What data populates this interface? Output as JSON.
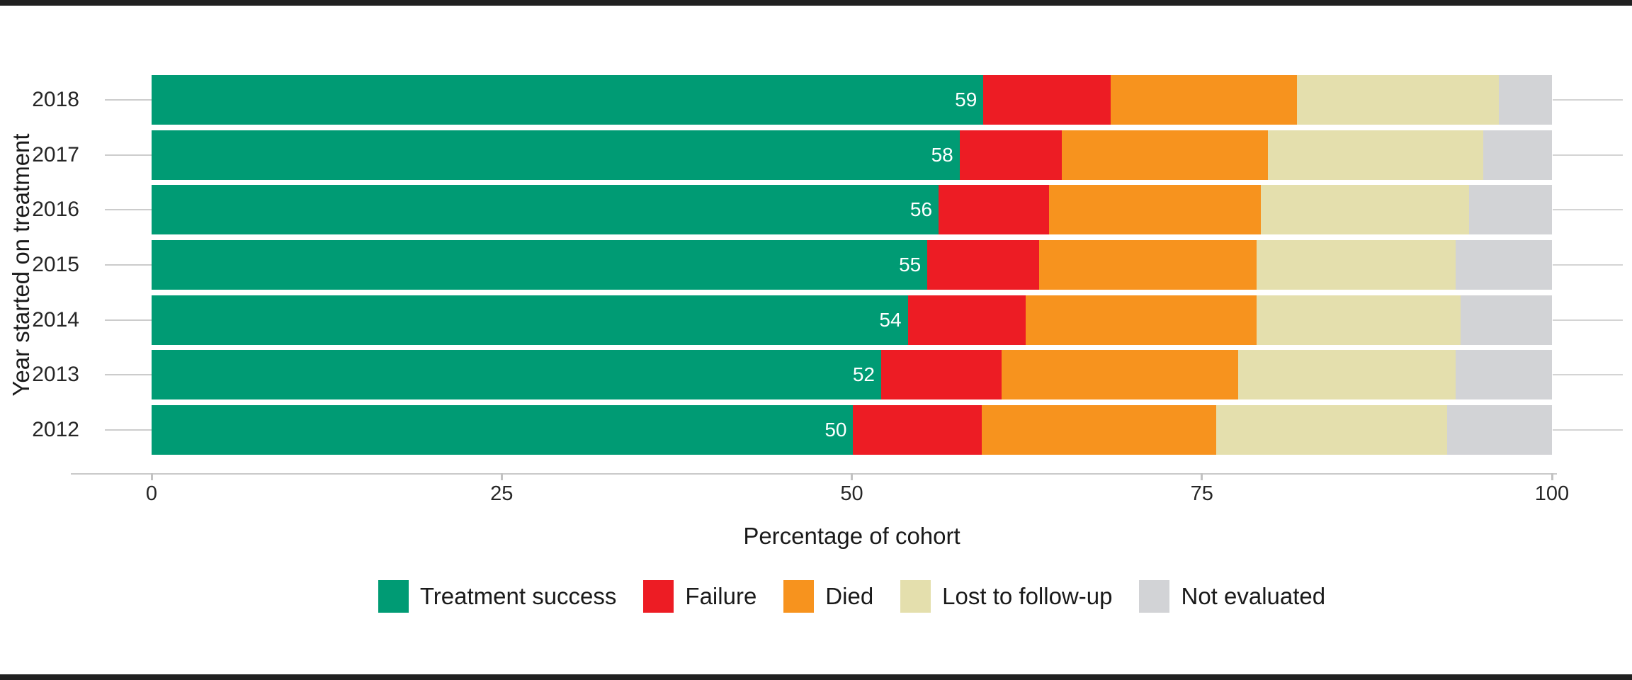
{
  "chart_data": {
    "type": "bar",
    "orientation": "horizontal",
    "stacked": true,
    "title": "",
    "xlabel": "Percentage of cohort",
    "ylabel": "Year started on treatment",
    "xlim": [
      0,
      100
    ],
    "xticks": [
      0,
      25,
      50,
      75,
      100
    ],
    "grid": "category tick lines only, no vertical gridlines",
    "legend_position": "bottom-center",
    "categories": [
      "2018",
      "2017",
      "2016",
      "2015",
      "2014",
      "2013",
      "2012"
    ],
    "series": [
      {
        "name": "Treatment success",
        "color": "#009B74",
        "values": [
          59.4,
          57.7,
          56.2,
          55.4,
          54.0,
          52.1,
          50.1
        ]
      },
      {
        "name": "Failure",
        "color": "#ED1C24",
        "values": [
          9.1,
          7.3,
          7.9,
          8.0,
          8.4,
          8.6,
          9.2
        ]
      },
      {
        "name": "Died",
        "color": "#F7931E",
        "values": [
          13.3,
          14.7,
          15.1,
          15.5,
          16.5,
          16.9,
          16.7
        ]
      },
      {
        "name": "Lost to follow-up",
        "color": "#E4DFAD",
        "values": [
          14.4,
          15.4,
          14.9,
          14.2,
          14.6,
          15.5,
          16.5
        ]
      },
      {
        "name": "Not evaluated",
        "color": "#D2D3D6",
        "values": [
          3.8,
          4.9,
          5.9,
          6.9,
          6.5,
          6.9,
          7.5
        ]
      }
    ],
    "bar_labels": [
      "59",
      "58",
      "56",
      "55",
      "54",
      "52",
      "50"
    ],
    "bar_label_series": "Treatment success",
    "axis_color": "#c9c9c9",
    "text_color": "#262626"
  }
}
